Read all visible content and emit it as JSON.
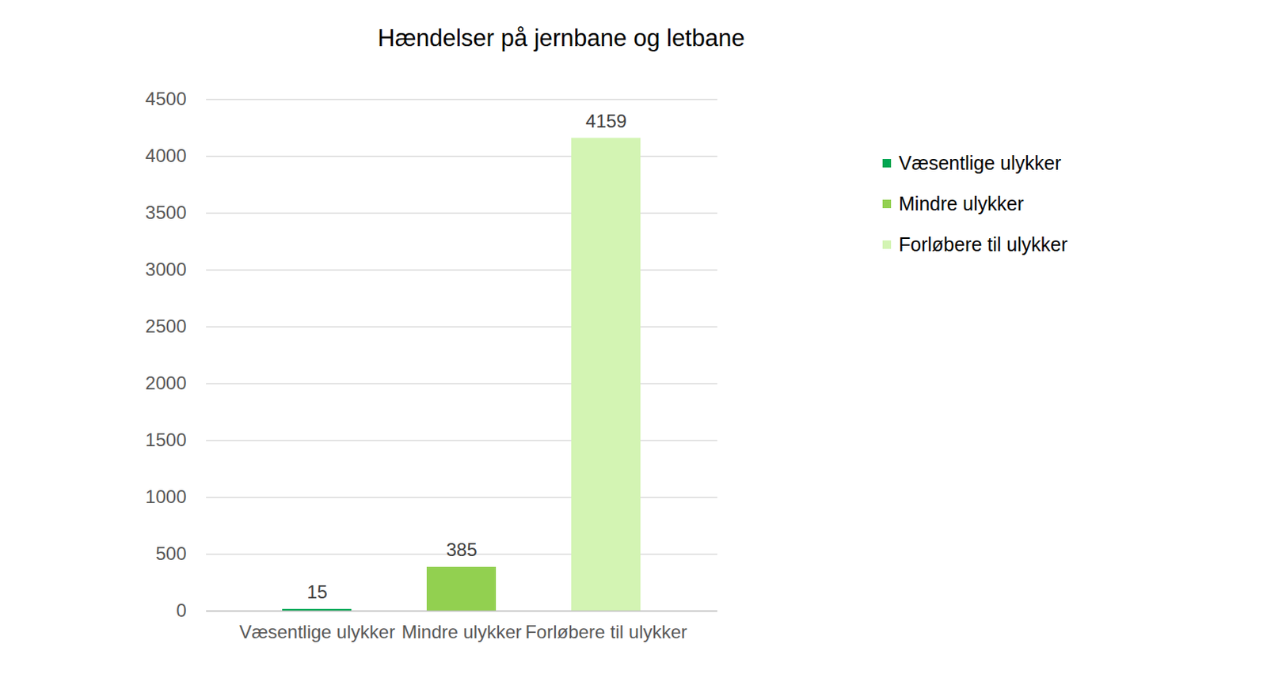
{
  "chart_data": {
    "type": "bar",
    "title": "Hændelser på jernbane og letbane",
    "categories": [
      "Væsentlige ulykker",
      "Mindre ulykker",
      "Forløbere til ulykker"
    ],
    "values": [
      15,
      385,
      4159
    ],
    "colors": [
      "#00a651",
      "#92d050",
      "#d3f4b3"
    ],
    "ylim": [
      0,
      4500
    ],
    "yticks": [
      0,
      500,
      1000,
      1500,
      2000,
      2500,
      3000,
      3500,
      4000,
      4500
    ],
    "grid": true,
    "data_labels": true,
    "legend": "right"
  }
}
